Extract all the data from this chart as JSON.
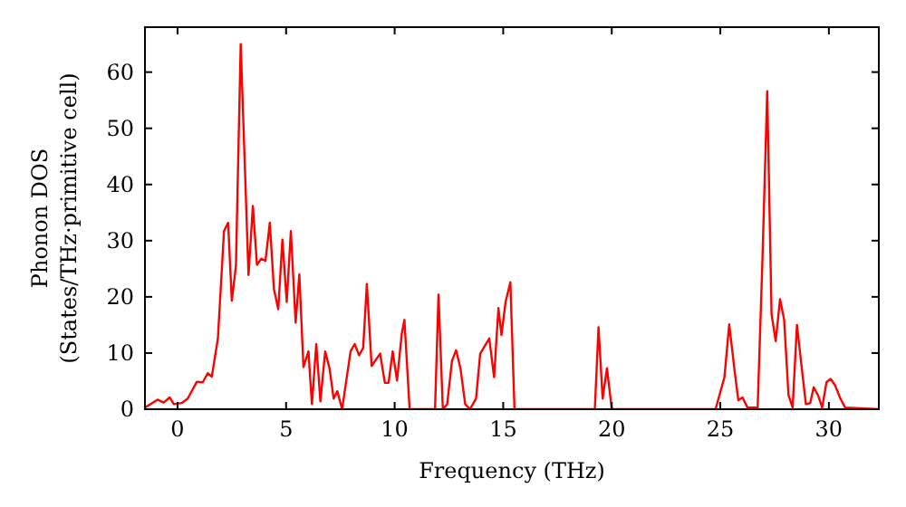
{
  "chart_data": {
    "type": "line",
    "xlabel": "Frequency (THz)",
    "ylabel": "Phonon DOS\n(States/THz·primitive cell)",
    "xlim": [
      -1.5,
      32.3
    ],
    "ylim": [
      0,
      68
    ],
    "xticks": [
      0,
      5,
      10,
      15,
      20,
      25,
      30
    ],
    "yticks": [
      0,
      10,
      20,
      30,
      40,
      50,
      60
    ],
    "grid": false,
    "marker": "none",
    "line_style": "solid",
    "series": [
      {
        "color": "#ff0000",
        "x": [
          -1.5,
          -0.92,
          -0.64,
          -0.36,
          -0.17,
          0.19,
          0.47,
          0.89,
          1.16,
          1.39,
          1.58,
          1.86,
          2.14,
          2.33,
          2.5,
          2.69,
          2.91,
          3.27,
          3.47,
          3.66,
          3.86,
          4.05,
          4.25,
          4.44,
          4.64,
          4.83,
          5.03,
          5.22,
          5.44,
          5.61,
          5.8,
          6.03,
          6.19,
          6.39,
          6.58,
          6.8,
          7.0,
          7.19,
          7.36,
          7.58,
          7.97,
          8.16,
          8.36,
          8.55,
          8.72,
          8.94,
          9.33,
          9.55,
          9.72,
          9.91,
          10.11,
          10.33,
          10.45,
          10.69,
          11.86,
          12.02,
          12.22,
          12.42,
          12.64,
          12.83,
          13.03,
          13.25,
          13.47,
          13.75,
          13.94,
          14.36,
          14.58,
          14.78,
          14.92,
          15.11,
          15.33,
          15.52,
          19.22,
          19.39,
          19.58,
          19.78,
          20.0,
          24.78,
          25.19,
          25.41,
          25.66,
          25.83,
          26.02,
          26.25,
          26.72,
          26.94,
          27.16,
          27.36,
          27.55,
          27.75,
          27.94,
          28.14,
          28.33,
          28.53,
          28.72,
          28.94,
          29.14,
          29.3,
          29.5,
          29.69,
          29.89,
          30.08,
          30.28,
          30.53,
          30.75,
          32.3
        ],
        "values": [
          0.3,
          1.7,
          1.2,
          2.1,
          0.9,
          1.1,
          1.9,
          4.9,
          4.8,
          6.4,
          5.8,
          12.6,
          31.7,
          33.2,
          19.3,
          25.5,
          65,
          23.9,
          36.2,
          25.7,
          26.8,
          26.4,
          33.2,
          21.4,
          17.8,
          30.2,
          19.1,
          31.7,
          15.4,
          24,
          7.5,
          10.3,
          0.9,
          11.6,
          1.4,
          10.3,
          7.3,
          1.9,
          3.2,
          0,
          10.3,
          11.6,
          9.6,
          10.9,
          22.3,
          7.7,
          9.9,
          4.7,
          4.7,
          10.3,
          5.1,
          13.5,
          15.9,
          0,
          0,
          20.4,
          0,
          0.9,
          8.6,
          10.5,
          7.3,
          0.9,
          0,
          1.9,
          9.9,
          12.6,
          5.7,
          18,
          13.2,
          19.1,
          22.6,
          0,
          0,
          14.6,
          1.9,
          7.3,
          0,
          0,
          5.7,
          15.1,
          6.8,
          1.6,
          2.1,
          0.3,
          0.3,
          26.6,
          56.6,
          16.9,
          12.1,
          19.6,
          15.9,
          2.5,
          0.3,
          15,
          8.4,
          0.9,
          1.1,
          3.9,
          2.5,
          0.3,
          4.8,
          5.4,
          4.3,
          1.9,
          0.3,
          0
        ]
      }
    ]
  }
}
